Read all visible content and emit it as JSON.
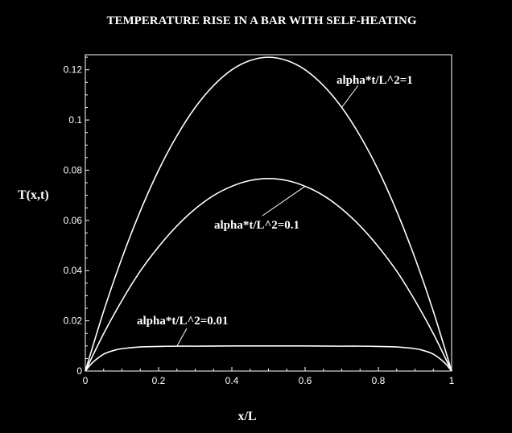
{
  "chart_data": {
    "type": "line",
    "title": "TEMPERATURE RISE IN A BAR WITH SELF-HEATING",
    "xlabel": "x/L",
    "ylabel": "T(x,t)",
    "xlim": [
      0,
      1
    ],
    "ylim": [
      0,
      0.126
    ],
    "x_ticks": [
      "0",
      "0.2",
      "0.4",
      "0.6",
      "0.8",
      "1"
    ],
    "y_ticks": [
      "0",
      "0.02",
      "0.04",
      "0.06",
      "0.08",
      "0.1",
      "0.12"
    ],
    "grid": false,
    "colors": {
      "background": "#000000",
      "foreground": "#ffffff"
    },
    "series": [
      {
        "name": "alpha*t/L^2=1",
        "x": [
          0,
          0.05,
          0.1,
          0.15,
          0.2,
          0.25,
          0.3,
          0.35,
          0.4,
          0.45,
          0.5,
          0.55,
          0.6,
          0.65,
          0.7,
          0.75,
          0.8,
          0.85,
          0.9,
          0.95,
          1
        ],
        "y": [
          0,
          0.0238,
          0.045,
          0.0637,
          0.08,
          0.0937,
          0.105,
          0.1137,
          0.12,
          0.1237,
          0.125,
          0.1237,
          0.12,
          0.1137,
          0.105,
          0.0937,
          0.08,
          0.0637,
          0.045,
          0.0238,
          0
        ]
      },
      {
        "name": "alpha*t/L^2=0.1",
        "x": [
          0,
          0.05,
          0.1,
          0.15,
          0.2,
          0.25,
          0.3,
          0.35,
          0.4,
          0.45,
          0.5,
          0.55,
          0.6,
          0.65,
          0.7,
          0.75,
          0.8,
          0.85,
          0.9,
          0.95,
          1
        ],
        "y": [
          0,
          0.0149,
          0.0281,
          0.0398,
          0.0495,
          0.0578,
          0.0646,
          0.0699,
          0.0736,
          0.0759,
          0.0767,
          0.0759,
          0.0736,
          0.0699,
          0.0646,
          0.0578,
          0.0495,
          0.0398,
          0.0281,
          0.0149,
          0
        ]
      },
      {
        "name": "alpha*t/L^2=0.01",
        "x": [
          0,
          0.02,
          0.05,
          0.08,
          0.1,
          0.15,
          0.2,
          0.25,
          0.3,
          0.4,
          0.5,
          0.6,
          0.7,
          0.75,
          0.8,
          0.85,
          0.9,
          0.92,
          0.95,
          0.98,
          1
        ],
        "y": [
          0,
          0.0034,
          0.0067,
          0.0083,
          0.0089,
          0.0096,
          0.0098,
          0.0099,
          0.0099,
          0.01,
          0.01,
          0.01,
          0.0099,
          0.0099,
          0.0098,
          0.0096,
          0.0089,
          0.0083,
          0.0067,
          0.0034,
          0
        ]
      }
    ],
    "annotations": [
      {
        "text": "alpha*t/L^2=1",
        "series": 0
      },
      {
        "text": "alpha*t/L^2=0.1",
        "series": 1
      },
      {
        "text": "alpha*t/L^2=0.01",
        "series": 2
      }
    ]
  }
}
